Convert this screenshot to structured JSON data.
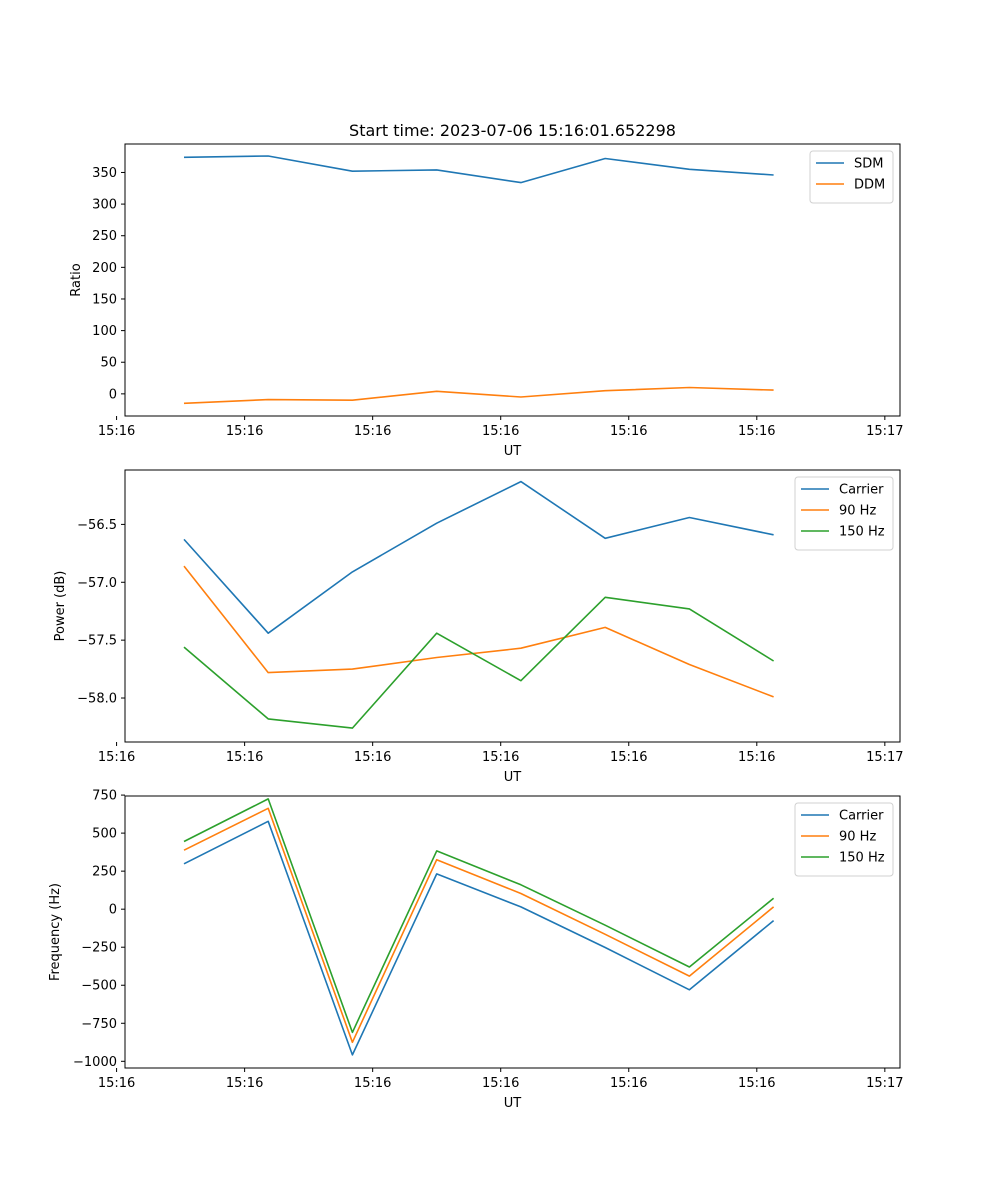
{
  "chart_data": [
    {
      "type": "line",
      "title": "Start time: 2023-07-06 15:16:01.652298",
      "xlabel": "UT",
      "ylabel": "Ratio",
      "x": [
        1,
        2,
        3,
        4,
        5,
        6,
        7,
        8
      ],
      "xlim": [
        0.3,
        9.5
      ],
      "xtick_positions": [
        0.2,
        1.72,
        3.24,
        4.76,
        6.28,
        7.8,
        9.32
      ],
      "xtick_labels": [
        "15:16",
        "15:16",
        "15:16",
        "15:16",
        "15:16",
        "15:16",
        "15:17"
      ],
      "ylim": [
        -35,
        395
      ],
      "yticks": [
        0,
        50,
        100,
        150,
        200,
        250,
        300,
        350
      ],
      "ytick_labels": [
        "0",
        "50",
        "100",
        "150",
        "200",
        "250",
        "300",
        "350"
      ],
      "legend": "top-right",
      "series": [
        {
          "name": "SDM",
          "color": "#1f77b4",
          "values": [
            374,
            376,
            352,
            354,
            334,
            372,
            355,
            346
          ]
        },
        {
          "name": "DDM",
          "color": "#ff7f0e",
          "values": [
            -15,
            -9,
            -10,
            4,
            -5,
            5,
            10,
            6
          ]
        }
      ]
    },
    {
      "type": "line",
      "title": "",
      "xlabel": "UT",
      "ylabel": "Power (dB)",
      "x": [
        1,
        2,
        3,
        4,
        5,
        6,
        7,
        8
      ],
      "xlim": [
        0.3,
        9.5
      ],
      "xtick_positions": [
        0.2,
        1.72,
        3.24,
        4.76,
        6.28,
        7.8,
        9.32
      ],
      "xtick_labels": [
        "15:16",
        "15:16",
        "15:16",
        "15:16",
        "15:16",
        "15:16",
        "15:17"
      ],
      "ylim": [
        -58.38,
        -56.03
      ],
      "yticks": [
        -58.0,
        -57.5,
        -57.0,
        -56.5
      ],
      "ytick_labels": [
        "−58.0",
        "−57.5",
        "−57.0",
        "−56.5"
      ],
      "legend": "top-right",
      "series": [
        {
          "name": "Carrier",
          "color": "#1f77b4",
          "values": [
            -56.63,
            -57.44,
            -56.91,
            -56.49,
            -56.13,
            -56.62,
            -56.44,
            -56.59
          ]
        },
        {
          "name": "90 Hz",
          "color": "#ff7f0e",
          "values": [
            -56.86,
            -57.78,
            -57.75,
            -57.65,
            -57.57,
            -57.39,
            -57.71,
            -57.99
          ]
        },
        {
          "name": "150 Hz",
          "color": "#2ca02c",
          "values": [
            -57.56,
            -58.18,
            -58.26,
            -57.44,
            -57.85,
            -57.13,
            -57.23,
            -57.68
          ]
        }
      ]
    },
    {
      "type": "line",
      "title": "",
      "xlabel": "UT",
      "ylabel": "Frequency (Hz)",
      "x": [
        1,
        2,
        3,
        4,
        5,
        6,
        7,
        8
      ],
      "xlim": [
        0.3,
        9.5
      ],
      "xtick_positions": [
        0.2,
        1.72,
        3.24,
        4.76,
        6.28,
        7.8,
        9.32
      ],
      "xtick_labels": [
        "15:16",
        "15:16",
        "15:16",
        "15:16",
        "15:16",
        "15:16",
        "15:17"
      ],
      "ylim": [
        -1044,
        744
      ],
      "yticks": [
        -1000,
        -750,
        -500,
        -250,
        0,
        250,
        500,
        750
      ],
      "ytick_labels": [
        "−1000",
        "−750",
        "−500",
        "−250",
        "0",
        "250",
        "500",
        "750"
      ],
      "legend": "top-right",
      "series": [
        {
          "name": "Carrier",
          "color": "#1f77b4",
          "values": [
            298,
            578,
            -958,
            232,
            15,
            -252,
            -530,
            -75
          ]
        },
        {
          "name": "90 Hz",
          "color": "#ff7f0e",
          "values": [
            388,
            663,
            -875,
            325,
            103,
            -165,
            -440,
            15
          ]
        },
        {
          "name": "150 Hz",
          "color": "#2ca02c",
          "values": [
            445,
            725,
            -810,
            383,
            160,
            -105,
            -380,
            72
          ]
        }
      ]
    }
  ]
}
